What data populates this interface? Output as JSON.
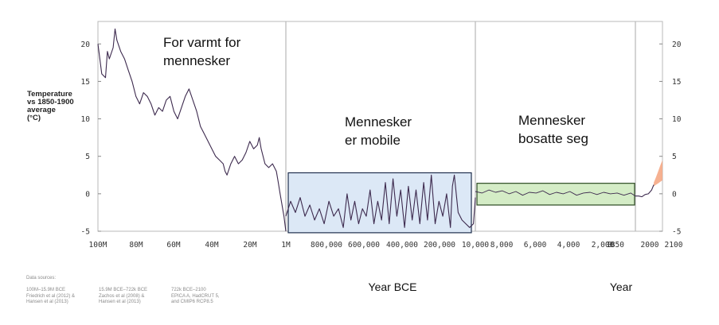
{
  "chart_data": {
    "type": "line",
    "ylabel_lines": [
      "Temperature",
      "vs 1850-1900",
      "average",
      "(°C)"
    ],
    "ylim": [
      -5,
      23
    ],
    "yticks": [
      "20",
      "15",
      "10",
      "5",
      "0",
      "-5"
    ],
    "xtitles": [
      "Year BCE",
      "Year"
    ],
    "grid": false,
    "panels": [
      {
        "x_ticks": [
          "100M",
          "80M",
          "60M",
          "40M",
          "20M",
          "1M"
        ],
        "series": {
          "x": [
            100,
            98,
            96,
            95,
            94,
            92,
            91,
            90,
            88,
            86,
            84,
            82,
            80,
            78,
            76,
            74,
            72,
            70,
            68,
            66,
            64,
            62,
            60,
            58,
            56,
            54,
            52,
            50,
            48,
            46,
            44,
            42,
            40,
            38,
            36,
            34,
            33,
            32,
            30,
            28,
            26,
            24,
            22,
            20,
            18,
            16,
            15,
            14,
            12,
            10,
            8,
            6,
            5,
            4,
            3,
            2,
            1
          ],
          "values": [
            20,
            16,
            15.5,
            19,
            18,
            19.5,
            22,
            20.5,
            19,
            18,
            16.5,
            15,
            13,
            12,
            13.5,
            13,
            12,
            10.5,
            11.5,
            11,
            12.5,
            13,
            11,
            10,
            11.5,
            13,
            14,
            12.5,
            11,
            9,
            8,
            7,
            6,
            5,
            4.5,
            4,
            3,
            2.5,
            4,
            5,
            4,
            4.5,
            5.5,
            7,
            6,
            6.5,
            7.5,
            6,
            4,
            3.5,
            4,
            3,
            1.5,
            0,
            -1.5,
            -3,
            -5
          ]
        }
      },
      {
        "x_ticks": [
          "800,000",
          "600,000",
          "400,000",
          "200,000",
          "10,000"
        ],
        "series": {
          "x": [
            1000000,
            975000,
            950000,
            925000,
            900000,
            875000,
            850000,
            825000,
            800000,
            775000,
            750000,
            725000,
            700000,
            680000,
            660000,
            640000,
            620000,
            600000,
            580000,
            560000,
            540000,
            520000,
            500000,
            480000,
            460000,
            440000,
            420000,
            400000,
            380000,
            360000,
            340000,
            320000,
            300000,
            280000,
            260000,
            240000,
            220000,
            200000,
            180000,
            160000,
            140000,
            130000,
            120000,
            100000,
            80000,
            60000,
            40000,
            20000,
            10000
          ],
          "values": [
            -3,
            -1,
            -2.5,
            -0.5,
            -3,
            -1.5,
            -3.5,
            -2,
            -4,
            -1,
            -3,
            -2,
            -4.5,
            0,
            -3.5,
            -1,
            -4,
            -2,
            -3,
            0.5,
            -4,
            -1,
            -3.5,
            1.5,
            -4,
            2,
            -3,
            0.5,
            -4.5,
            1,
            -3.5,
            0.5,
            -4,
            1.5,
            -3.5,
            2.5,
            -4,
            -1,
            -3,
            0,
            -4.5,
            1,
            2.5,
            -2.5,
            -3.5,
            -4,
            -4.5,
            -4,
            -0.5
          ]
        }
      },
      {
        "x_ticks": [
          "8,000",
          "6,000",
          "4,000",
          "2,000",
          "0",
          "1850"
        ],
        "series": {
          "x": [
            10000,
            9500,
            9000,
            8500,
            8000,
            7500,
            7000,
            6500,
            6000,
            5500,
            5000,
            4500,
            4000,
            3500,
            3000,
            2500,
            2000,
            1500,
            1000,
            500,
            0,
            -500,
            -1000,
            -1500,
            -1850
          ],
          "values": [
            0.3,
            0.1,
            0.5,
            0.2,
            0.4,
            0.0,
            0.3,
            -0.2,
            0.2,
            0.1,
            0.4,
            -0.1,
            0.2,
            0.0,
            0.3,
            -0.2,
            0.1,
            0.2,
            -0.1,
            0.2,
            0.0,
            0.1,
            -0.2,
            0.1,
            -0.3
          ]
        }
      },
      {
        "x_ticks": [
          "2000",
          "2100"
        ],
        "series": {
          "x": [
            1850,
            1880,
            1910,
            1940,
            1970,
            2000,
            2020
          ],
          "values": [
            -0.3,
            -0.3,
            -0.4,
            -0.1,
            0.0,
            0.5,
            1.2
          ]
        },
        "projection_band": {
          "x": [
            2020,
            2040,
            2060,
            2080,
            2100
          ],
          "low": [
            1.0,
            1.2,
            1.4,
            1.6,
            1.8
          ],
          "high": [
            1.5,
            2.2,
            3.0,
            3.8,
            4.5
          ]
        }
      }
    ],
    "annotations": [
      {
        "lines": [
          "For varmt for",
          "mennesker"
        ]
      },
      {
        "lines": [
          "Mennesker",
          "er mobile"
        ]
      },
      {
        "lines": [
          "Mennesker",
          "bosatte seg"
        ]
      }
    ],
    "colors": {
      "line": "#3d2a4e",
      "mobile_box_fill": "#dce8f6",
      "mobile_box_stroke": "#1f2f4d",
      "settled_box_fill": "#d4ecc6",
      "settled_box_stroke": "#2c4a22",
      "projection_fill": "#f4a37e",
      "divider": "#b8b8b8"
    }
  },
  "sources": {
    "title": "Data sources:",
    "columns": [
      "100M–15.9M BCE\nFriedrich et al (2012) &\nHansen et al (2013)",
      "15.9M BCE–722k BCE\nZachos et al (2008) &\nHansen et al (2013)",
      "722k BCE–2100\nEPICA A, HadCRUT 5,\nand CMIP6 RCP8.5"
    ]
  }
}
